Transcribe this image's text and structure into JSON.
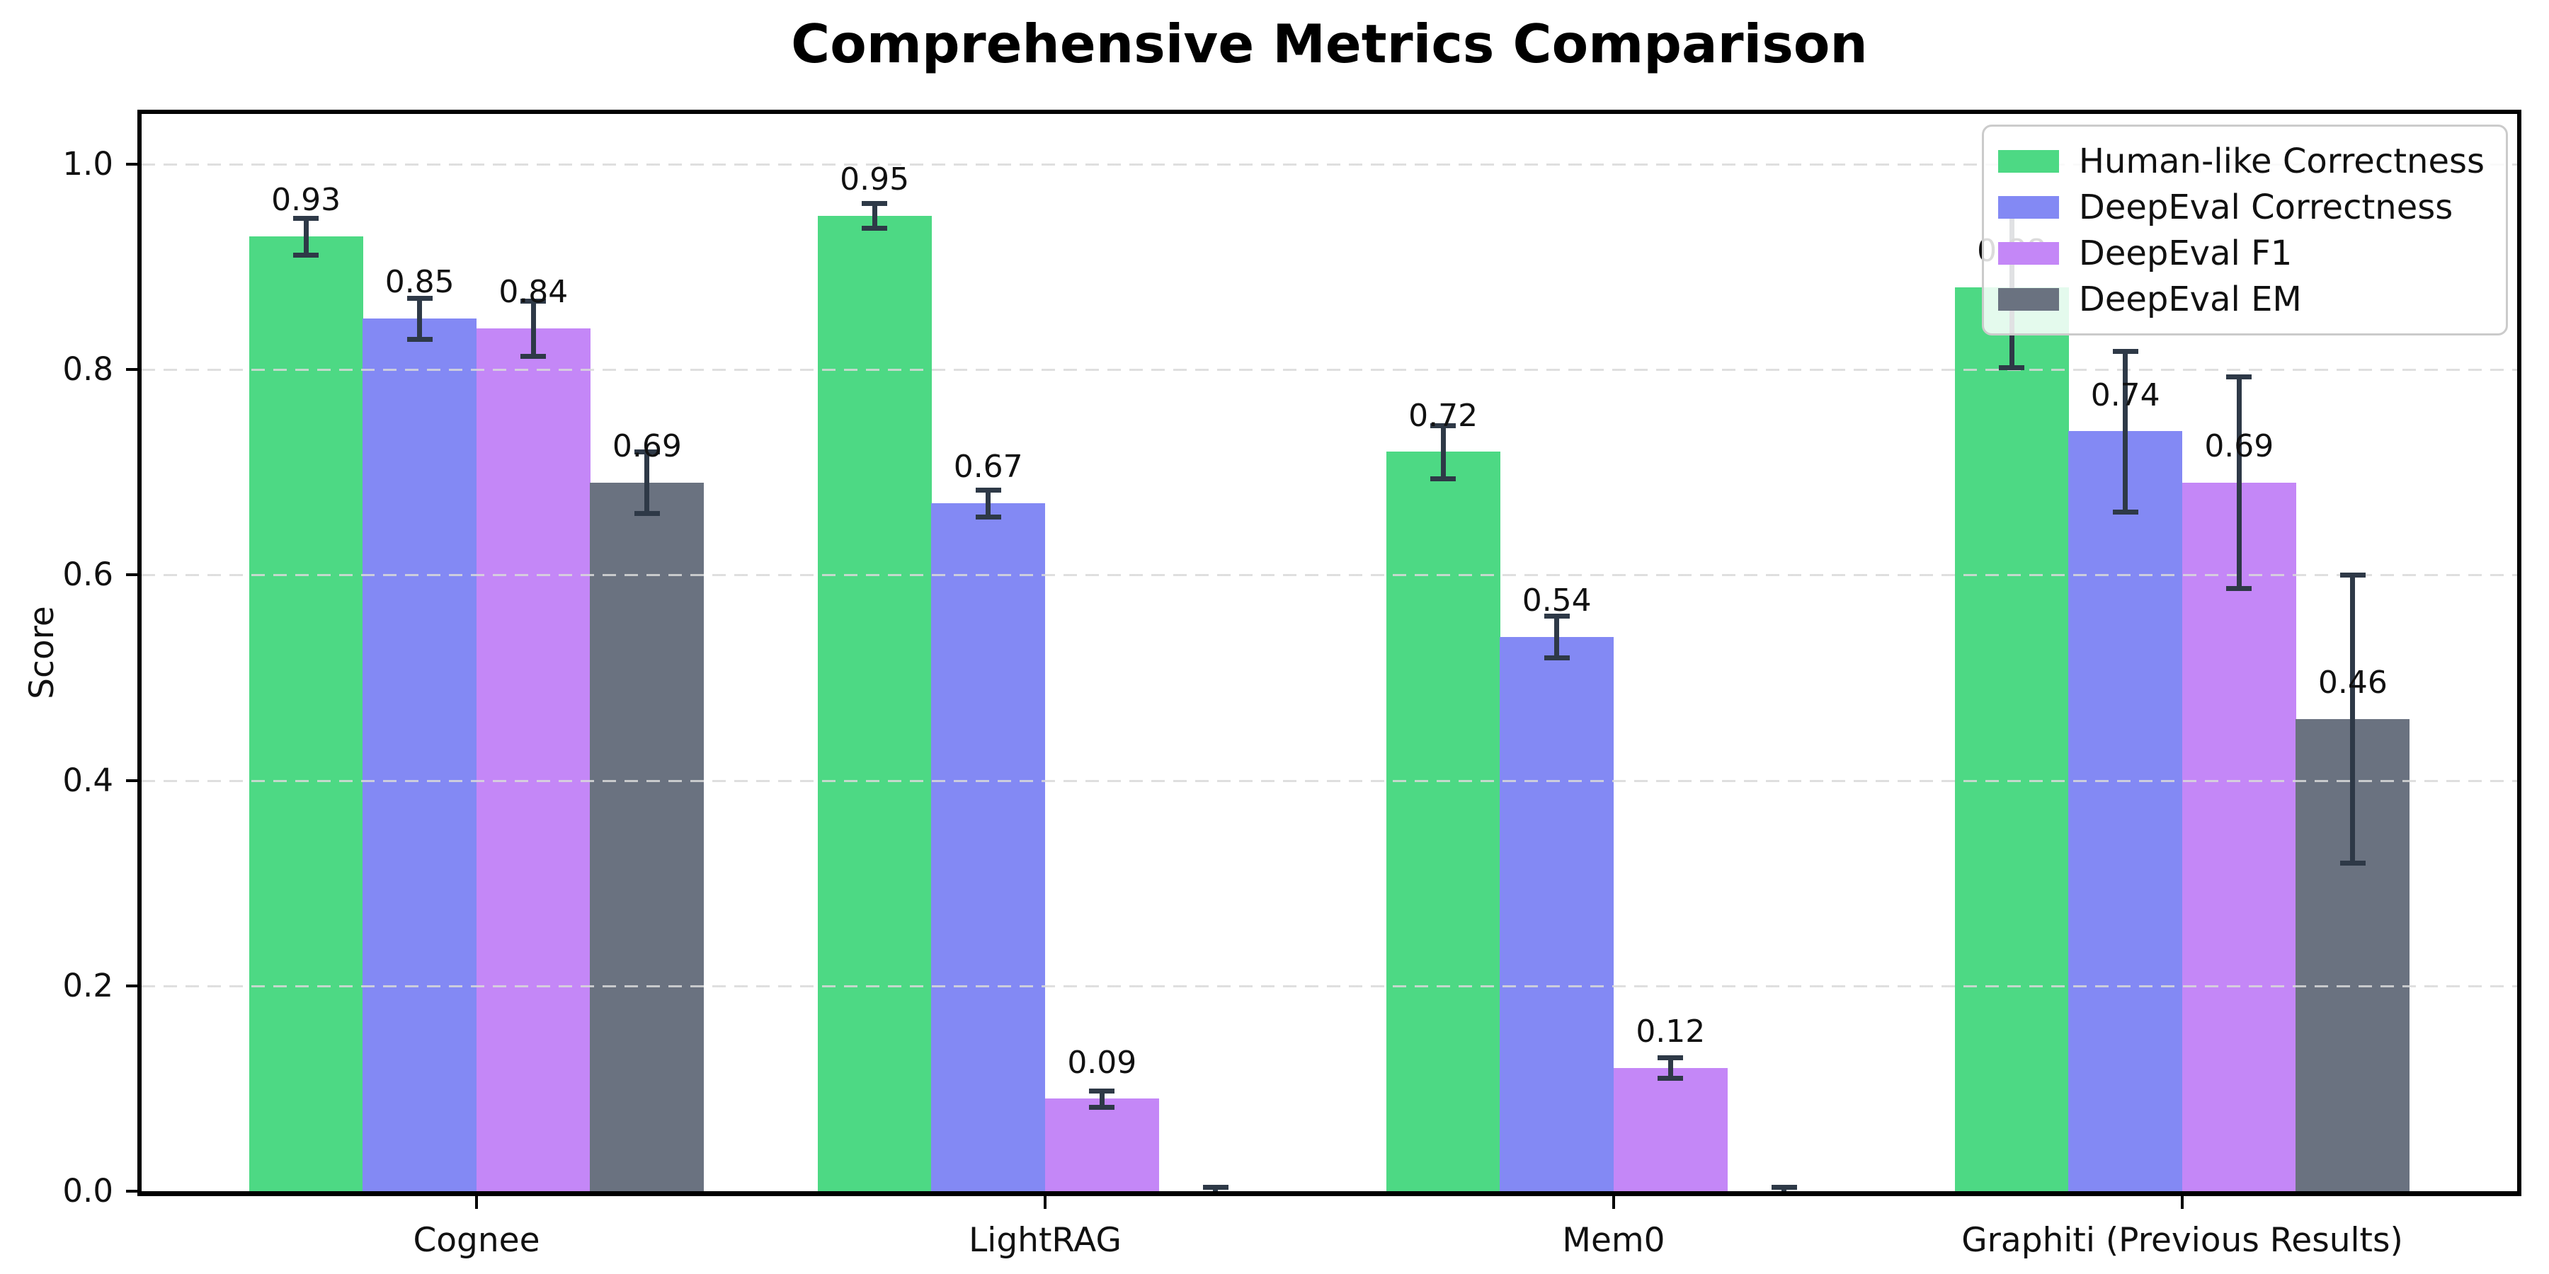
{
  "title": "Comprehensive Metrics Comparison",
  "ylabel": "Score",
  "chart_data": {
    "type": "bar",
    "title": "Comprehensive Metrics Comparison",
    "xlabel": "",
    "ylabel": "Score",
    "categories": [
      "Cognee",
      "LightRAG",
      "Mem0",
      "Graphiti (Previous Results)"
    ],
    "series": [
      {
        "name": "Human-like Correctness",
        "color": "#4dd984",
        "values": [
          0.93,
          0.95,
          0.72,
          0.88
        ],
        "errors": [
          0.018,
          0.012,
          0.026,
          0.078
        ],
        "labels": [
          "0.93",
          "0.95",
          "0.72",
          "0.88"
        ]
      },
      {
        "name": "DeepEval Correctness",
        "color": "#8389f4",
        "values": [
          0.85,
          0.67,
          0.54,
          0.74
        ],
        "errors": [
          0.02,
          0.013,
          0.02,
          0.078
        ],
        "labels": [
          "0.85",
          "0.67",
          "0.54",
          "0.74"
        ]
      },
      {
        "name": "DeepEval F1",
        "color": "#c487f7",
        "values": [
          0.84,
          0.09,
          0.12,
          0.69
        ],
        "errors": [
          0.027,
          0.008,
          0.01,
          0.103
        ],
        "labels": [
          "0.84",
          "0.09",
          "0.12",
          "0.69"
        ]
      },
      {
        "name": "DeepEval EM",
        "color": "#6a7280",
        "values": [
          0.69,
          0.0,
          0.0,
          0.46
        ],
        "errors": [
          0.03,
          0.004,
          0.004,
          0.14
        ],
        "labels": [
          "0.69",
          "",
          "",
          "0.46"
        ]
      }
    ],
    "yticks": [
      "0.0",
      "0.2",
      "0.4",
      "0.6",
      "0.8",
      "1.0"
    ],
    "ylim": [
      0.0,
      1.049
    ],
    "grid": "horizontal-dashed",
    "legend_position": "upper-right",
    "colors": {
      "error_bar": "#2e3947",
      "grid_line": "#d9d9d9",
      "axis": "#000000",
      "text": "#111111",
      "legend_border": "#cbcbcb"
    }
  }
}
